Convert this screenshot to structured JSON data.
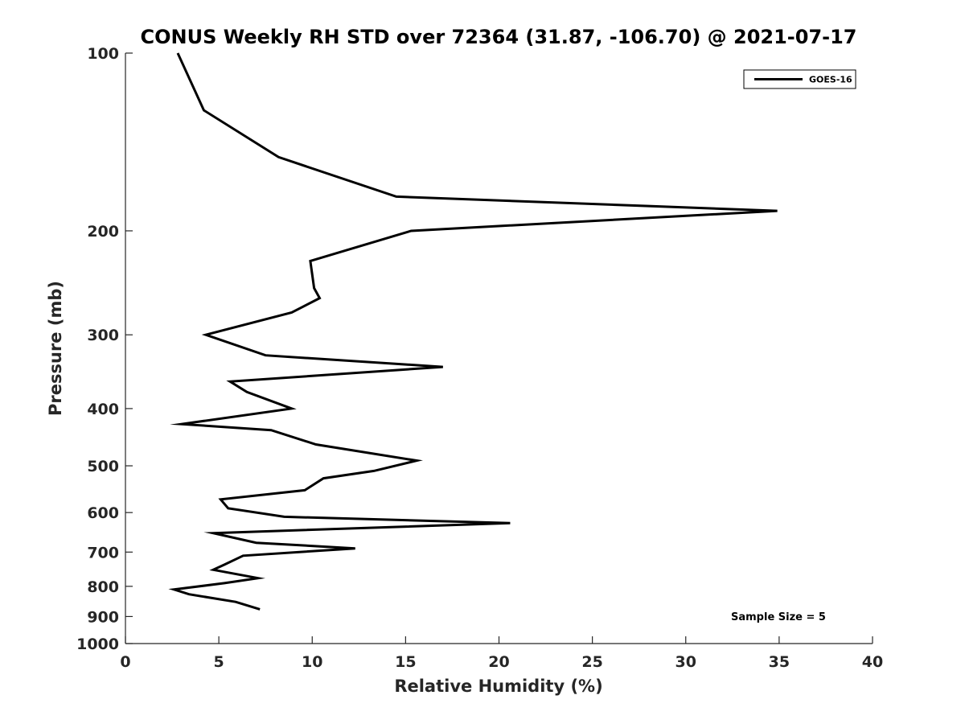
{
  "chart_data": {
    "type": "line",
    "title": "CONUS Weekly RH STD over 72364 (31.87, -106.70) @ 2021-07-17",
    "xlabel": "Relative Humidity (%)",
    "ylabel": "Pressure (mb)",
    "xlim": [
      0,
      40
    ],
    "ylim": [
      100,
      1000
    ],
    "yscale": "log",
    "xticks": [
      0,
      5,
      10,
      15,
      20,
      25,
      30,
      35,
      40
    ],
    "xtick_labels": [
      "0",
      "5",
      "10",
      "15",
      "20",
      "25",
      "30",
      "35",
      "40"
    ],
    "yticks": [
      100,
      200,
      300,
      400,
      500,
      600,
      700,
      800,
      900,
      1000
    ],
    "ytick_labels": [
      "100",
      "200",
      "300",
      "400",
      "500",
      "600",
      "700",
      "800",
      "900",
      "1000"
    ],
    "legend": "top-right",
    "annotation": "Sample Size = 5",
    "series": [
      {
        "name": "GOES-16",
        "color": "#000000",
        "x": [
          2.8,
          4.2,
          8.2,
          14.5,
          34.9,
          15.3,
          9.9,
          10.1,
          10.4,
          8.9,
          4.3,
          7.5,
          17.0,
          5.6,
          6.5,
          8.9,
          3.0,
          7.8,
          10.2,
          15.6,
          13.3,
          10.6,
          9.6,
          5.1,
          5.5,
          8.5,
          20.6,
          4.7,
          7.0,
          12.3,
          6.3,
          5.3,
          4.7,
          7.1,
          5.3,
          2.6,
          3.4,
          5.9,
          7.2
        ],
        "y": [
          100,
          125,
          150,
          175,
          185,
          200,
          225,
          250,
          260,
          275,
          300,
          325,
          340,
          360,
          375,
          400,
          425,
          435,
          460,
          490,
          510,
          525,
          550,
          570,
          590,
          610,
          625,
          650,
          675,
          690,
          710,
          735,
          750,
          775,
          790,
          810,
          825,
          850,
          875
        ]
      }
    ]
  }
}
